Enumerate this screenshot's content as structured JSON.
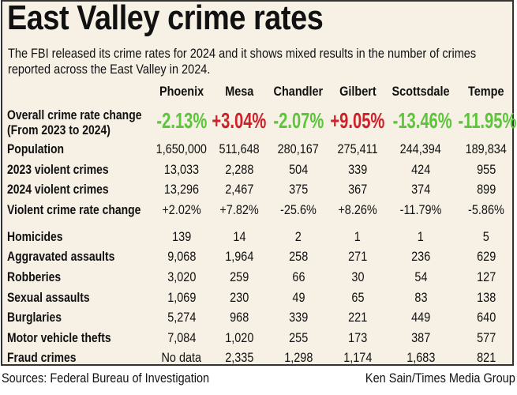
{
  "title": "East Valley crime rates",
  "subtitle": "The FBI released its crime rates for 2024 and it shows mixed results in the number of crimes reported across the East Valley in 2024.",
  "source": "Sources: Federal Bureau of Investigation",
  "credit": "Ken Sain/Times Media Group",
  "colors": {
    "decrease": "#5bc63a",
    "increase": "#d0202a",
    "background": "#f6f0e5"
  },
  "chart_data": {
    "type": "table",
    "columns": [
      "Phoenix",
      "Mesa",
      "Chandler",
      "Gilbert",
      "Scottsdale",
      "Tempe"
    ],
    "highlight_row": {
      "label": "Overall crime rate change",
      "sublabel": "(From 2023 to 2024)",
      "values": [
        "-2.13%",
        "+3.04%",
        "-2.07%",
        "+9.05%",
        "-13.46%",
        "-11.95%"
      ]
    },
    "rows": [
      {
        "label": "Population",
        "values": [
          "1,650,000",
          "511,648",
          "280,167",
          "275,411",
          "244,394",
          "189,834"
        ]
      },
      {
        "label": "2023 violent crimes",
        "values": [
          "13,033",
          "2,288",
          "504",
          "339",
          "424",
          "955"
        ]
      },
      {
        "label": "2024 violent crimes",
        "values": [
          "13,296",
          "2,467",
          "375",
          "367",
          "374",
          "899"
        ]
      },
      {
        "label": "Violent crime rate change",
        "values": [
          "+2.02%",
          "+7.82%",
          "-25.6%",
          "+8.26%",
          "-11.79%",
          "-5.86%"
        ]
      },
      {
        "label": "Homicides",
        "values": [
          "139",
          "14",
          "2",
          "1",
          "1",
          "5"
        ]
      },
      {
        "label": "Aggravated assaults",
        "values": [
          "9,068",
          "1,964",
          "258",
          "271",
          "236",
          "629"
        ]
      },
      {
        "label": "Robberies",
        "values": [
          "3,020",
          "259",
          "66",
          "30",
          "54",
          "127"
        ]
      },
      {
        "label": "Sexual assaults",
        "values": [
          "1,069",
          "230",
          "49",
          "65",
          "83",
          "138"
        ]
      },
      {
        "label": "Burglaries",
        "values": [
          "5,274",
          "968",
          "339",
          "221",
          "449",
          "640"
        ]
      },
      {
        "label": "Motor vehicle thefts",
        "values": [
          "7,084",
          "1,020",
          "255",
          "173",
          "387",
          "577"
        ]
      },
      {
        "label": "Fraud crimes",
        "values": [
          "No data",
          "2,335",
          "1,298",
          "1,174",
          "1,683",
          "821"
        ]
      }
    ]
  }
}
